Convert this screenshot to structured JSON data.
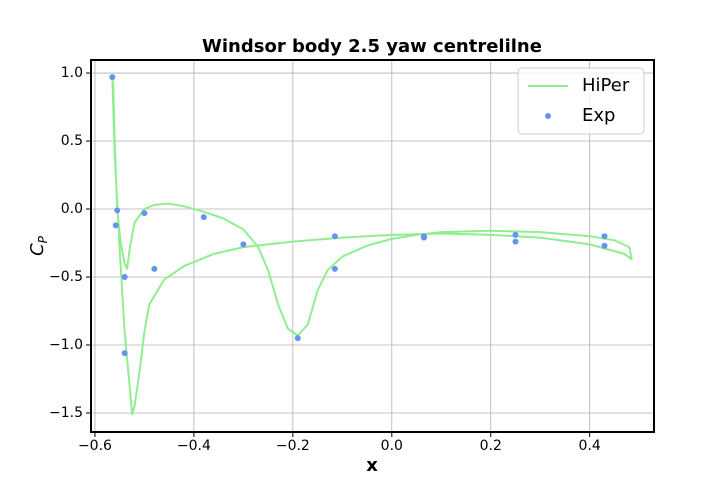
{
  "chart_data": {
    "type": "line-scatter",
    "title": "Windsor body 2.5 yaw centrelilne",
    "x_label": "x",
    "y_label": "C",
    "y_label_subscript": "P",
    "xlim": [
      -0.608,
      0.53
    ],
    "ylim": [
      -1.64,
      1.096
    ],
    "xticks": [
      {
        "value": -0.6,
        "label": "−0.6"
      },
      {
        "value": -0.4,
        "label": "−0.4"
      },
      {
        "value": -0.2,
        "label": "−0.2"
      },
      {
        "value": 0,
        "label": "0.0"
      },
      0.2,
      0.4
    ],
    "yticks": [
      {
        "value": 1,
        "label": "1.0"
      },
      0.5,
      {
        "value": 0,
        "label": "0.0"
      },
      {
        "value": -0.5,
        "label": "−0.5"
      },
      {
        "value": -1,
        "label": "−1.0"
      },
      {
        "value": -1.5,
        "label": "−1.5"
      }
    ],
    "grid": true,
    "legend": "upper right",
    "series": [
      {
        "name": "HiPer",
        "type": "line",
        "color": "#90ee90",
        "x": [
          -0.565,
          -0.563,
          -0.56,
          -0.555,
          -0.548,
          -0.54,
          -0.535,
          -0.53,
          -0.52,
          -0.5,
          -0.48,
          -0.45,
          -0.42,
          -0.38,
          -0.34,
          -0.3,
          -0.27,
          -0.25,
          -0.23,
          -0.21,
          -0.19,
          -0.17,
          -0.15,
          -0.13,
          -0.1,
          -0.05,
          0.0,
          0.05,
          0.1,
          0.2,
          0.3,
          0.4,
          0.45,
          0.48,
          0.485,
          0.47,
          0.4,
          0.3,
          0.2,
          0.1,
          0.0,
          -0.1,
          -0.2,
          -0.3,
          -0.36,
          -0.42,
          -0.46,
          -0.49,
          -0.5,
          -0.51,
          -0.52,
          -0.525,
          -0.53,
          -0.54,
          -0.55,
          -0.56,
          -0.565
        ],
        "values": [
          0.98,
          0.9,
          0.5,
          0.0,
          -0.25,
          -0.4,
          -0.44,
          -0.3,
          -0.1,
          0.0,
          0.03,
          0.04,
          0.02,
          -0.02,
          -0.07,
          -0.15,
          -0.28,
          -0.45,
          -0.7,
          -0.88,
          -0.93,
          -0.85,
          -0.6,
          -0.45,
          -0.35,
          -0.27,
          -0.22,
          -0.19,
          -0.17,
          -0.16,
          -0.17,
          -0.2,
          -0.23,
          -0.28,
          -0.37,
          -0.33,
          -0.26,
          -0.21,
          -0.19,
          -0.18,
          -0.19,
          -0.21,
          -0.24,
          -0.28,
          -0.33,
          -0.42,
          -0.52,
          -0.7,
          -0.9,
          -1.2,
          -1.45,
          -1.51,
          -1.3,
          -0.9,
          -0.3,
          0.4,
          0.98
        ]
      },
      {
        "name": "Exp",
        "type": "scatter",
        "color": "#6495ed",
        "x": [
          -0.565,
          -0.555,
          -0.558,
          -0.54,
          -0.54,
          -0.5,
          -0.48,
          -0.38,
          -0.3,
          -0.19,
          -0.115,
          -0.115,
          0.065,
          0.065,
          0.25,
          0.25,
          0.43,
          0.43
        ],
        "values": [
          0.97,
          -0.01,
          -0.12,
          -0.5,
          -1.06,
          -0.03,
          -0.44,
          -0.06,
          -0.26,
          -0.95,
          -0.2,
          -0.44,
          -0.2,
          -0.21,
          -0.19,
          -0.24,
          -0.2,
          -0.27
        ]
      }
    ]
  }
}
